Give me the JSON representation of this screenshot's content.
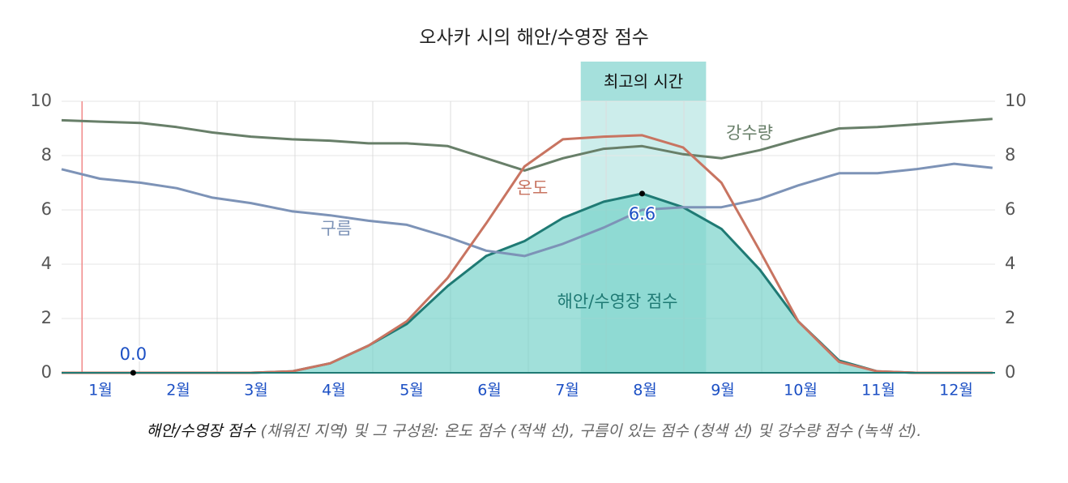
{
  "chart_data": {
    "type": "area_line",
    "title": "오사카 시의 해안/수영장 점수",
    "categories": [
      "1월",
      "2월",
      "3월",
      "4월",
      "5월",
      "6월",
      "7월",
      "8월",
      "9월",
      "10월",
      "11월",
      "12월"
    ],
    "x": [
      0,
      15,
      31,
      45,
      59,
      74,
      90,
      105,
      120,
      135,
      151,
      166,
      181,
      196,
      212,
      227,
      243,
      258,
      273,
      288,
      304,
      319,
      334,
      349,
      364
    ],
    "xlim": [
      0,
      365
    ],
    "ylim": [
      0,
      10
    ],
    "yticks": [
      0,
      2,
      4,
      6,
      8,
      10
    ],
    "y2lim": [
      0,
      10
    ],
    "y2ticks": [
      0,
      2,
      4,
      6,
      8,
      10
    ],
    "grid": true,
    "series": [
      {
        "name": "강수량",
        "color": "#687f69",
        "values": [
          9.3,
          9.25,
          9.2,
          9.05,
          8.85,
          8.7,
          8.6,
          8.55,
          8.45,
          8.45,
          8.35,
          7.9,
          7.45,
          7.9,
          8.25,
          8.35,
          8.05,
          7.9,
          8.2,
          8.6,
          9.0,
          9.05,
          9.15,
          9.25,
          9.35
        ]
      },
      {
        "name": "구름",
        "color": "#7d93b7",
        "values": [
          7.5,
          7.15,
          7.0,
          6.8,
          6.45,
          6.25,
          5.95,
          5.8,
          5.6,
          5.45,
          5.0,
          4.5,
          4.3,
          4.75,
          5.35,
          6.0,
          6.1,
          6.1,
          6.4,
          6.9,
          7.35,
          7.35,
          7.5,
          7.7,
          7.55
        ]
      },
      {
        "name": "온도",
        "color": "#c87461",
        "values": [
          0,
          0,
          0,
          0,
          0,
          0,
          0.05,
          0.35,
          1.0,
          1.9,
          3.5,
          5.5,
          7.6,
          8.6,
          8.7,
          8.75,
          8.3,
          7.0,
          4.5,
          1.9,
          0.4,
          0.05,
          0,
          0,
          0
        ]
      },
      {
        "name": "해안/수영장 점수",
        "color": "#1f7a74",
        "fill": "#6fd0c6",
        "values": [
          0,
          0,
          0,
          0,
          0,
          0,
          0.05,
          0.35,
          1.0,
          1.8,
          3.2,
          4.3,
          4.85,
          5.7,
          6.3,
          6.6,
          6.1,
          5.3,
          3.8,
          1.9,
          0.45,
          0.05,
          0,
          0,
          0
        ]
      }
    ],
    "best_time": {
      "label": "최고의 시간",
      "x": [
        203,
        252
      ],
      "color": "#8fd8d3"
    },
    "marker_x": 8,
    "annotations": [
      {
        "x": 28,
        "y": 0,
        "label": "0.0"
      },
      {
        "x": 227,
        "y": 6.6,
        "label": "6.6"
      }
    ],
    "caption_lead": "해안/수영장 점수",
    "caption_rest": "(채워진 지역) 및 그 구성원: 온도 점수 (적색 선), 구름이 있는 점수 (청색 선) 및 강수량 점수 (녹색 선)."
  }
}
